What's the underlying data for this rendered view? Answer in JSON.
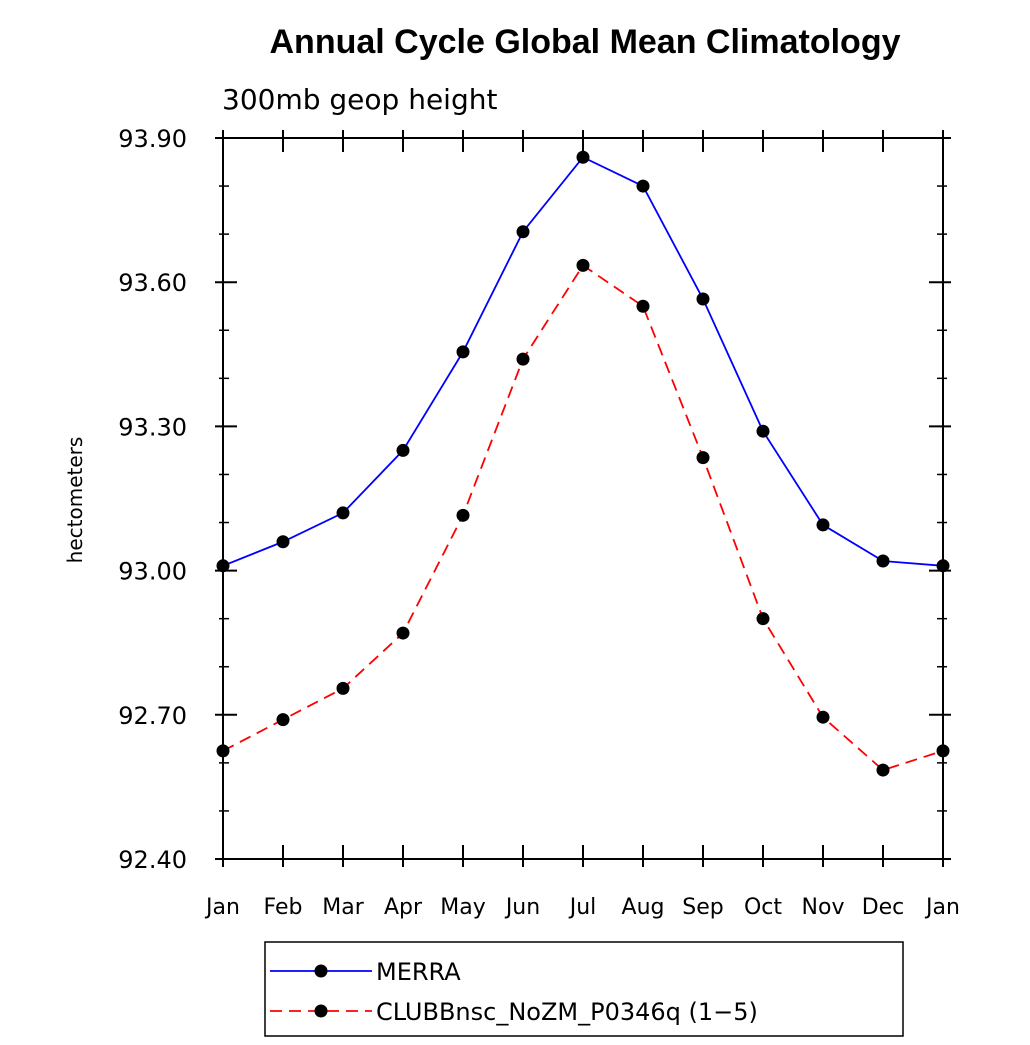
{
  "chart_data": {
    "type": "line",
    "title": "Annual Cycle Global Mean Climatology",
    "subtitle": "300mb geop height",
    "ylabel": "hectometers",
    "xlabel": "",
    "categories": [
      "Jan",
      "Feb",
      "Mar",
      "Apr",
      "May",
      "Jun",
      "Jul",
      "Aug",
      "Sep",
      "Oct",
      "Nov",
      "Dec",
      "Jan"
    ],
    "ylim": [
      92.4,
      93.9
    ],
    "yticks": [
      "93.90",
      "93.60",
      "93.30",
      "93.00",
      "92.70",
      "92.40"
    ],
    "grid": false,
    "legend_position": "bottom",
    "series": [
      {
        "name": "MERRA",
        "color": "#0000ff",
        "dash": "solid",
        "marker": "filled-circle",
        "values": [
          93.01,
          93.06,
          93.12,
          93.25,
          93.455,
          93.705,
          93.86,
          93.8,
          93.565,
          93.29,
          93.095,
          93.02,
          93.01
        ]
      },
      {
        "name": "CLUBBnsc_NoZM_P0346q (1−5)",
        "color": "#ff0000",
        "dash": "dashed",
        "marker": "filled-circle",
        "values": [
          92.625,
          92.69,
          92.755,
          92.87,
          93.115,
          93.44,
          93.635,
          93.55,
          93.235,
          92.9,
          92.695,
          92.585,
          92.625
        ]
      }
    ]
  }
}
